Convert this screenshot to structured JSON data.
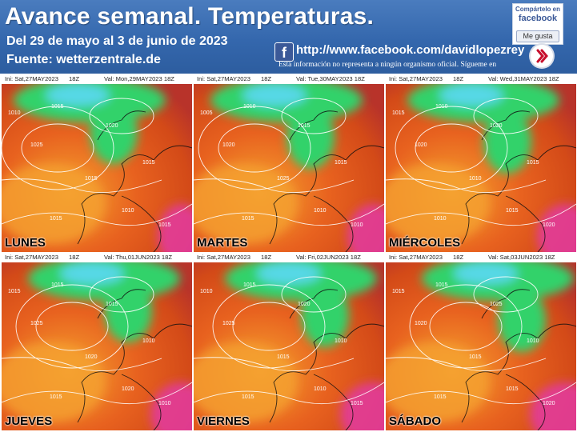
{
  "header": {
    "title": "Avance semanal. Temperaturas.",
    "date_range": "Del 29 de mayo al 3 de junio de 2023",
    "source": "Fuente: wetterzentrale.de",
    "facebook_url": "http://www.facebook.com/davidlopezrey",
    "disclaimer": "Esta información no representa a ningún organismo oficial. Sígueme en",
    "share_label": "Compártelo en",
    "share_brand": "facebook",
    "like_label": "Me gusta",
    "fb_glyph": "f"
  },
  "colors": {
    "header_bg": "#3467ad",
    "warm": "#e8621f",
    "orange": "#f5a12f",
    "cold_green": "#32d26a",
    "cold_cyan": "#56d8e6",
    "hot_magenta": "#e23c9a"
  },
  "maps": [
    {
      "init": "Ini:  Sat,27MAY2023",
      "run": "18Z",
      "valid": "Val:  Mon,29MAY2023   18Z",
      "day": "LUNES",
      "isobars": [
        "1010",
        "1015",
        "1020",
        "1025",
        "1015",
        "1015",
        "1015",
        "1010",
        "1015"
      ]
    },
    {
      "init": "Ini:  Sat,27MAY2023",
      "run": "18Z",
      "valid": "Val:  Tue,30MAY2023   18Z",
      "day": "MARTES",
      "isobars": [
        "1005",
        "1010",
        "1015",
        "1020",
        "1025",
        "1015",
        "1015",
        "1010",
        "1010"
      ]
    },
    {
      "init": "Ini:  Sat,27MAY2023",
      "run": "18Z",
      "valid": "Val:  Wed,31MAY2023   18Z",
      "day": "MIÉRCOLES",
      "isobars": [
        "1015",
        "1010",
        "1020",
        "1020",
        "1010",
        "1015",
        "1010",
        "1015",
        "1020"
      ]
    },
    {
      "init": "Ini:  Sat,27MAY2023",
      "run": "18Z",
      "valid": "Val:  Thu,01JUN2023   18Z",
      "day": "JUEVES",
      "isobars": [
        "1015",
        "1015",
        "1015",
        "1025",
        "1020",
        "1010",
        "1015",
        "1020",
        "1010"
      ]
    },
    {
      "init": "Ini:  Sat,27MAY2023",
      "run": "18Z",
      "valid": "Val:  Fri,02JUN2023   18Z",
      "day": "VIERNES",
      "isobars": [
        "1010",
        "1015",
        "1020",
        "1025",
        "1015",
        "1010",
        "1015",
        "1010",
        "1015"
      ]
    },
    {
      "init": "Ini:  Sat,27MAY2023",
      "run": "18Z",
      "valid": "Val:  Sat,03JUN2023   18Z",
      "day": "SÁBADO",
      "isobars": [
        "1015",
        "1015",
        "1025",
        "1020",
        "1015",
        "1010",
        "1015",
        "1015",
        "1020"
      ]
    }
  ]
}
